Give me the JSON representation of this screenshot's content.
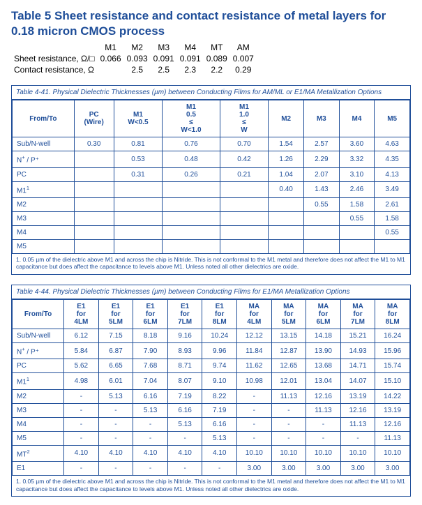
{
  "title": "Table 5 Sheet resistance and contact resistance of metal layers for 0.18 micron CMOS process",
  "header": {
    "cols": [
      "M1",
      "M2",
      "M3",
      "M4",
      "MT",
      "AM"
    ],
    "sheet_label": "Sheet resistance, Ω/□",
    "sheet_vals": [
      "0.066",
      "0.093",
      "0.091",
      "0.091",
      "0.089",
      "0.007"
    ],
    "contact_label": "Contact resistance, Ω",
    "contact_vals": [
      "",
      "2.5",
      "2.5",
      "2.3",
      "2.2",
      "0.29"
    ]
  },
  "table441": {
    "caption": "Table 4-41. Physical Dielectric Thicknesses (µm) between Conducting Films for AM/ML or E1/MA Metallization Options",
    "columns": [
      "From/To",
      "PC (Wire)",
      "M1 W<0.5",
      "M1 0.5 ≤ W<1.0",
      "M1 1.0 ≤ W",
      "M2",
      "M3",
      "M4",
      "M5"
    ],
    "rows": [
      {
        "h": "Sub/N-well",
        "c": [
          "0.30",
          "0.81",
          "0.76",
          "0.70",
          "1.54",
          "2.57",
          "3.60",
          "4.63"
        ]
      },
      {
        "h": "N⁺ / P⁺",
        "c": [
          "",
          "0.53",
          "0.48",
          "0.42",
          "1.26",
          "2.29",
          "3.32",
          "4.35"
        ]
      },
      {
        "h": "PC",
        "c": [
          "",
          "0.31",
          "0.26",
          "0.21",
          "1.04",
          "2.07",
          "3.10",
          "4.13"
        ]
      },
      {
        "h": "M1¹",
        "c": [
          "",
          "",
          "",
          "",
          "0.40",
          "1.43",
          "2.46",
          "3.49"
        ]
      },
      {
        "h": "M2",
        "c": [
          "",
          "",
          "",
          "",
          "",
          "0.55",
          "1.58",
          "2.61"
        ]
      },
      {
        "h": "M3",
        "c": [
          "",
          "",
          "",
          "",
          "",
          "",
          "0.55",
          "1.58"
        ]
      },
      {
        "h": "M4",
        "c": [
          "",
          "",
          "",
          "",
          "",
          "",
          "",
          "0.55"
        ]
      },
      {
        "h": "M5",
        "c": [
          "",
          "",
          "",
          "",
          "",
          "",
          "",
          ""
        ]
      }
    ],
    "footnote": "1. 0.05 µm of the dielectric above M1 and across the chip is Nitride. This is not conformal to the M1 metal and therefore does not affect the M1 to M1 capacitance but does affect the capacitance to levels above M1. Unless noted all other dielectrics are oxide."
  },
  "table444": {
    "caption": "Table 4-44. Physical Dielectric Thicknesses (µm) between Conducting Films for E1/MA Metallization Options",
    "columns": [
      "From/To",
      "E1 for 4LM",
      "E1 for 5LM",
      "E1 for 6LM",
      "E1 for 7LM",
      "E1 for 8LM",
      "MA for 4LM",
      "MA for 5LM",
      "MA for 6LM",
      "MA for 7LM",
      "MA for 8LM"
    ],
    "rows": [
      {
        "h": "Sub/N-well",
        "c": [
          "6.12",
          "7.15",
          "8.18",
          "9.16",
          "10.24",
          "12.12",
          "13.15",
          "14.18",
          "15.21",
          "16.24"
        ]
      },
      {
        "h": "N⁺ / P⁺",
        "c": [
          "5.84",
          "6.87",
          "7.90",
          "8.93",
          "9.96",
          "11.84",
          "12.87",
          "13.90",
          "14.93",
          "15.96"
        ]
      },
      {
        "h": "PC",
        "c": [
          "5.62",
          "6.65",
          "7.68",
          "8.71",
          "9.74",
          "11.62",
          "12.65",
          "13.68",
          "14.71",
          "15.74"
        ]
      },
      {
        "h": "M1¹",
        "c": [
          "4.98",
          "6.01",
          "7.04",
          "8.07",
          "9.10",
          "10.98",
          "12.01",
          "13.04",
          "14.07",
          "15.10"
        ]
      },
      {
        "h": "M2",
        "c": [
          "-",
          "5.13",
          "6.16",
          "7.19",
          "8.22",
          "-",
          "11.13",
          "12.16",
          "13.19",
          "14.22"
        ]
      },
      {
        "h": "M3",
        "c": [
          "-",
          "-",
          "5.13",
          "6.16",
          "7.19",
          "-",
          "-",
          "11.13",
          "12.16",
          "13.19"
        ]
      },
      {
        "h": "M4",
        "c": [
          "-",
          "-",
          "-",
          "5.13",
          "6.16",
          "-",
          "-",
          "-",
          "11.13",
          "12.16"
        ]
      },
      {
        "h": "M5",
        "c": [
          "-",
          "-",
          "-",
          "-",
          "5.13",
          "-",
          "-",
          "-",
          "-",
          "11.13"
        ]
      },
      {
        "h": "MT²",
        "c": [
          "4.10",
          "4.10",
          "4.10",
          "4.10",
          "4.10",
          "10.10",
          "10.10",
          "10.10",
          "10.10",
          "10.10"
        ]
      },
      {
        "h": "E1",
        "c": [
          "-",
          "-",
          "-",
          "-",
          "-",
          "3.00",
          "3.00",
          "3.00",
          "3.00",
          "3.00"
        ]
      }
    ],
    "footnote": "1. 0.05 µm of the dielectric above M1 and across the chip is Nitride. This is not conformal to the M1 metal and therefore does not affect the M1 to M1 capacitance but does affect the capacitance to levels above M1. Unless noted all other dielectrics are oxide."
  }
}
